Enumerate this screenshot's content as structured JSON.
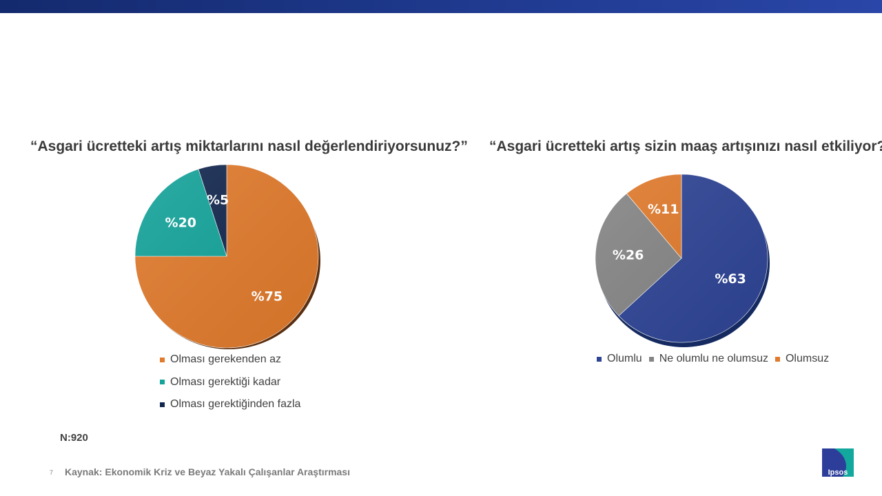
{
  "chart_data": [
    {
      "type": "pie",
      "title": "“Asgari ücretteki artış miktarlarını nasıl değerlendiriyorsunuz?”",
      "slices": [
        {
          "label": "Olması gerekenden az",
          "value": 75,
          "text": "%75",
          "color": "#e07a2c"
        },
        {
          "label": "Olması gerektiği kadar",
          "value": 20,
          "text": "%20",
          "color": "#14a39a"
        },
        {
          "label": "Olması gerektiğinden fazla",
          "value": 5,
          "text": "%5",
          "color": "#13284f"
        }
      ],
      "legend_position": "bottom"
    },
    {
      "type": "pie",
      "title": "“Asgari ücretteki artış sizin maaş artışınızı nasıl etkiliyor?”",
      "slices": [
        {
          "label": "Olumlu",
          "value": 63,
          "text": "%63",
          "color": "#2e4495"
        },
        {
          "label": "Ne olumlu ne olumsuz",
          "value": 26,
          "text": "%26",
          "color": "#858585"
        },
        {
          "label": "Olumsuz",
          "value": 11,
          "text": "%11",
          "color": "#e07a2c"
        }
      ],
      "legend_position": "bottom"
    }
  ],
  "footer": {
    "n": "N:920",
    "page_number": "7",
    "source": "Kaynak:  Ekonomik Kriz ve Beyaz Yakalı Çalışanlar Araştırması",
    "logo_text": "Ipsos"
  }
}
